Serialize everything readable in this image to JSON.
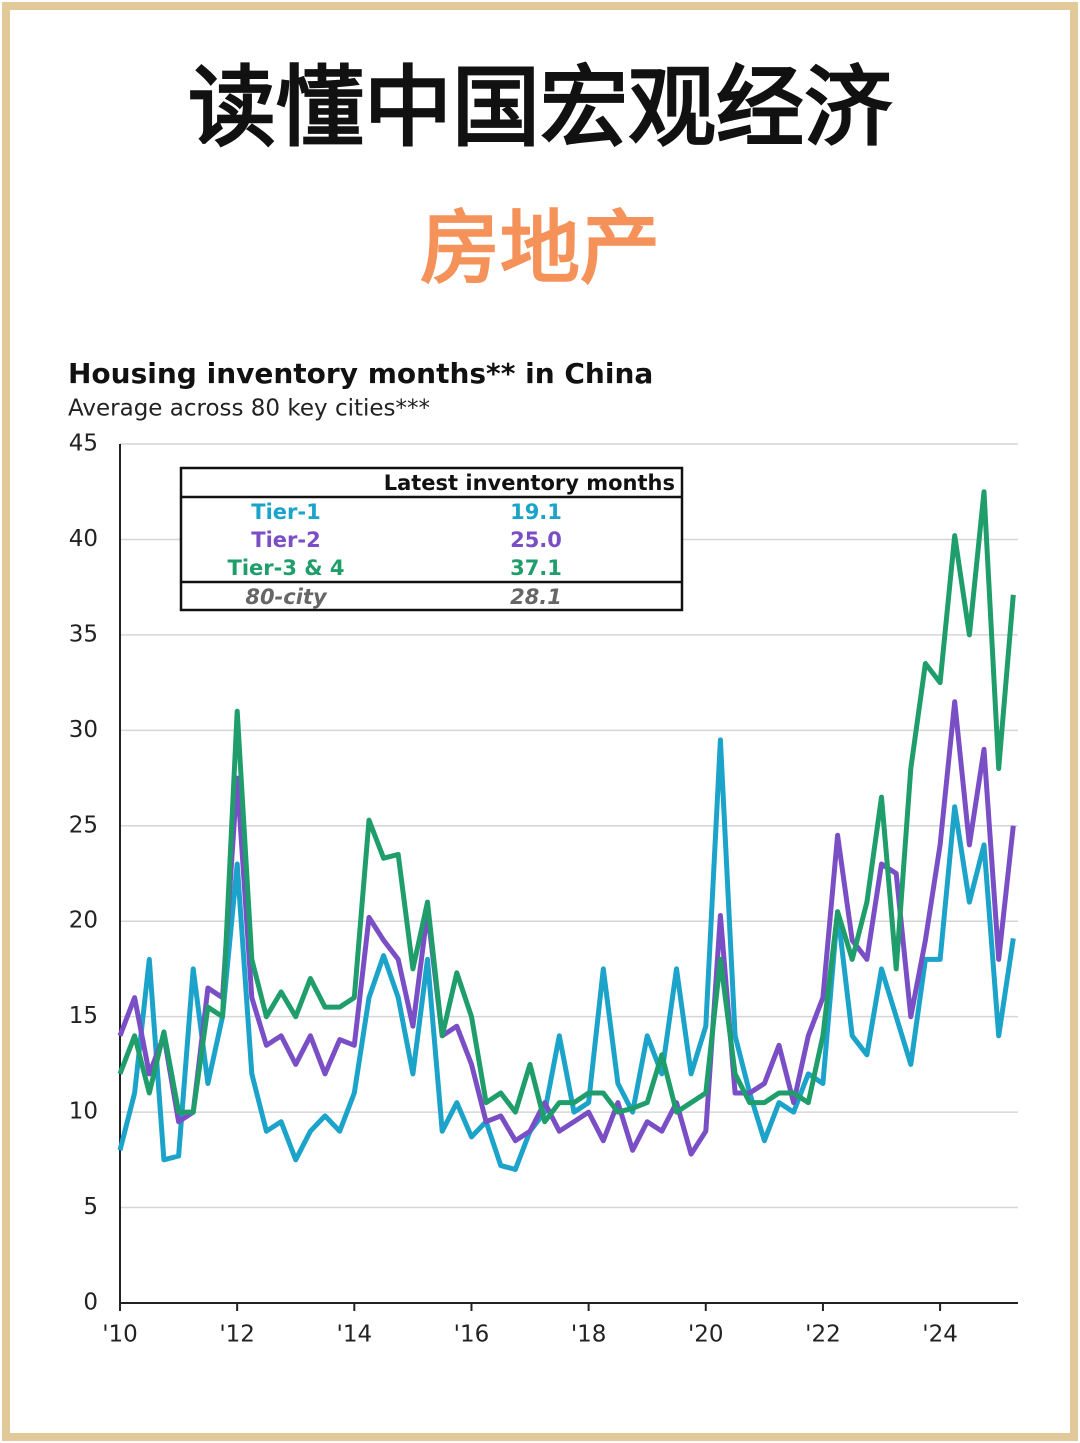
{
  "header": {
    "title": "读懂中国宏观经济",
    "subtitle": "房地产"
  },
  "chart_data": {
    "type": "line",
    "title": "Housing inventory months** in China",
    "subtitle": "Average across 80 key cities***",
    "x": [
      2010,
      2010.25,
      2010.5,
      2010.75,
      2011,
      2011.25,
      2011.5,
      2011.75,
      2012,
      2012.25,
      2012.5,
      2012.75,
      2013,
      2013.25,
      2013.5,
      2013.75,
      2014,
      2014.25,
      2014.5,
      2014.75,
      2015,
      2015.25,
      2015.5,
      2015.75,
      2016,
      2016.25,
      2016.5,
      2016.75,
      2017,
      2017.25,
      2017.5,
      2017.75,
      2018,
      2018.25,
      2018.5,
      2018.75,
      2019,
      2019.25,
      2019.5,
      2019.75,
      2020,
      2020.25,
      2020.5,
      2020.75,
      2021,
      2021.25,
      2021.5,
      2021.75,
      2022,
      2022.25,
      2022.5,
      2022.75,
      2023,
      2023.25,
      2023.5,
      2023.75,
      2024,
      2024.25,
      2024.5,
      2024.75,
      2025,
      2025.25
    ],
    "series": [
      {
        "name": "Tier-1",
        "color": "#1ba3c9",
        "values": [
          8,
          11,
          18,
          7.5,
          7.7,
          17.5,
          11.5,
          15,
          23,
          12,
          9,
          9.5,
          7.5,
          9,
          9.8,
          9,
          11,
          16,
          18.2,
          16,
          12,
          18,
          9,
          10.5,
          8.7,
          9.5,
          7.2,
          7,
          9,
          10,
          14,
          10,
          10.5,
          17.5,
          11.5,
          10,
          14,
          12,
          17.5,
          12,
          14.5,
          29.5,
          14,
          11,
          8.5,
          10.5,
          10,
          12,
          11.5,
          20.5,
          14,
          13,
          17.5,
          15,
          12.5,
          18,
          18,
          26,
          21,
          24,
          14,
          19.1
        ]
      },
      {
        "name": "Tier-2",
        "color": "#7a4fc6",
        "values": [
          14,
          16,
          12,
          14,
          9.5,
          10,
          16.5,
          16,
          27.5,
          16,
          13.5,
          14,
          12.5,
          14,
          12,
          13.8,
          13.5,
          20.2,
          19,
          18,
          14.5,
          20.5,
          14,
          14.5,
          12.5,
          9.5,
          9.8,
          8.5,
          9,
          10.5,
          9,
          9.5,
          10,
          8.5,
          10.5,
          8,
          9.5,
          9,
          10.5,
          7.8,
          9,
          20.3,
          11,
          11,
          11.5,
          13.5,
          10.5,
          14,
          16,
          24.5,
          19,
          18,
          23,
          22.5,
          15,
          19,
          24,
          31.5,
          24,
          29,
          18,
          25.0
        ]
      },
      {
        "name": "Tier-3 & 4",
        "color": "#1f9e6c",
        "values": [
          12,
          14,
          11,
          14.2,
          10,
          10,
          15.5,
          15,
          31,
          18,
          15,
          16.3,
          15,
          17,
          15.5,
          15.5,
          16,
          25.3,
          23.3,
          23.5,
          17.5,
          21,
          14,
          17.3,
          15,
          10.5,
          11,
          10,
          12.5,
          9.5,
          10.5,
          10.5,
          11,
          11,
          10,
          10.2,
          10.5,
          13,
          10,
          10.5,
          11,
          18,
          12,
          10.5,
          10.5,
          11,
          11,
          10.5,
          14,
          20.5,
          18,
          21,
          26.5,
          17.5,
          28,
          33.5,
          32.5,
          40.2,
          35,
          42.5,
          28,
          37.1
        ]
      }
    ],
    "xlim": [
      2010,
      2025.33
    ],
    "xticks": [
      {
        "value": 2010,
        "label": "'10"
      },
      {
        "value": 2012,
        "label": "'12"
      },
      {
        "value": 2014,
        "label": "'14"
      },
      {
        "value": 2016,
        "label": "'16"
      },
      {
        "value": 2018,
        "label": "'18"
      },
      {
        "value": 2020,
        "label": "'20"
      },
      {
        "value": 2022,
        "label": "'22"
      },
      {
        "value": 2024,
        "label": "'24"
      }
    ],
    "ylim": [
      0,
      45
    ],
    "yticks": [
      0,
      5,
      10,
      15,
      20,
      25,
      30,
      35,
      40,
      45
    ],
    "grid": true,
    "inset_table": {
      "header": "Latest inventory months",
      "rows": [
        {
          "name": "Tier-1",
          "value": "19.1",
          "color": "#1ba3c9"
        },
        {
          "name": "Tier-2",
          "value": "25.0",
          "color": "#7a4fc6"
        },
        {
          "name": "Tier-3 & 4",
          "value": "37.1",
          "color": "#1f9e6c"
        },
        {
          "name": "80-city",
          "value": "28.1",
          "color": "#666666"
        }
      ]
    }
  }
}
